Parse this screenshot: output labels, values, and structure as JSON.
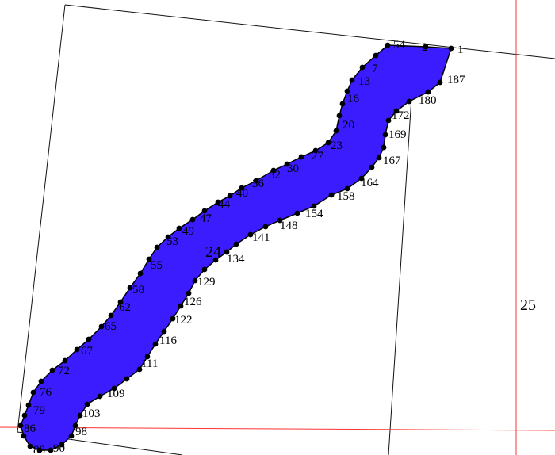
{
  "map": {
    "parcel_labels": [
      "24",
      "25"
    ],
    "colors": {
      "fill": "#3a1cff",
      "outline": "#000000",
      "boundary": "#111111",
      "grid": "#ff3333",
      "vertex": "#000000"
    },
    "vertex_labels": [
      "1",
      "2",
      "54",
      "7",
      "13",
      "16",
      "20",
      "23",
      "27",
      "30",
      "32",
      "36",
      "40",
      "44",
      "47",
      "49",
      "53",
      "55",
      "58",
      "62",
      "65",
      "67",
      "72",
      "76",
      "79",
      "86",
      "88",
      "90",
      "98",
      "103",
      "109",
      "111",
      "116",
      "122",
      "126",
      "129",
      "134",
      "141",
      "148",
      "154",
      "158",
      "164",
      "167",
      "169",
      "172",
      "180",
      "187"
    ]
  }
}
